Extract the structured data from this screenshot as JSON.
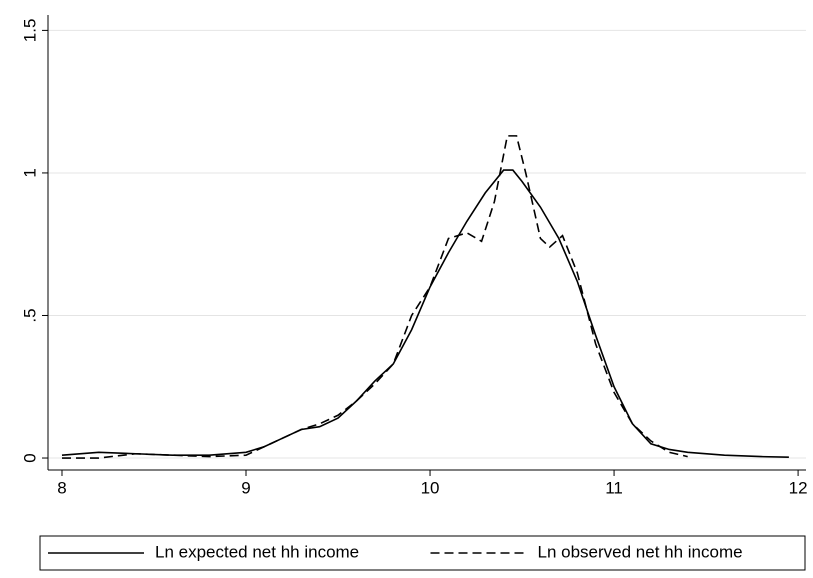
{
  "chart_data": {
    "type": "line",
    "xlim": [
      7.924,
      12.043
    ],
    "ylim": [
      -0.042,
      1.554
    ],
    "xticks": [
      8,
      9,
      10,
      11,
      12
    ],
    "yticks": [
      0,
      {
        "value": 0.5,
        "label": ".5"
      },
      1,
      {
        "value": 1.5,
        "label": "1.5"
      }
    ],
    "grid": true,
    "legend": "bottom",
    "series": [
      {
        "name": "Ln expected net hh income",
        "color": "#000000",
        "dash": "solid",
        "x": [
          8,
          8.2,
          8.4,
          8.6,
          8.8,
          9.0,
          9.1,
          9.2,
          9.3,
          9.4,
          9.5,
          9.6,
          9.7,
          9.8,
          9.9,
          10.0,
          10.1,
          10.2,
          10.3,
          10.4,
          10.45,
          10.5,
          10.6,
          10.7,
          10.8,
          10.9,
          11.0,
          11.1,
          11.2,
          11.3,
          11.4,
          11.6,
          11.8,
          11.95
        ],
        "values": [
          0.01,
          0.02,
          0.015,
          0.01,
          0.01,
          0.02,
          0.04,
          0.07,
          0.1,
          0.11,
          0.14,
          0.2,
          0.27,
          0.33,
          0.45,
          0.6,
          0.72,
          0.83,
          0.93,
          1.01,
          1.01,
          0.97,
          0.88,
          0.77,
          0.62,
          0.43,
          0.25,
          0.12,
          0.05,
          0.03,
          0.02,
          0.01,
          0.005,
          0.003
        ]
      },
      {
        "name": "Ln observed net hh income",
        "color": "#000000",
        "dash": "dashed",
        "x": [
          8,
          8.2,
          8.4,
          8.6,
          8.8,
          9.0,
          9.1,
          9.2,
          9.3,
          9.4,
          9.5,
          9.6,
          9.7,
          9.8,
          9.9,
          10.0,
          10.1,
          10.2,
          10.28,
          10.35,
          10.42,
          10.47,
          10.52,
          10.6,
          10.65,
          10.72,
          10.8,
          10.9,
          11.0,
          11.1,
          11.2,
          11.3,
          11.4
        ],
        "values": [
          0.0,
          0.0,
          0.015,
          0.01,
          0.005,
          0.01,
          0.04,
          0.07,
          0.1,
          0.12,
          0.15,
          0.2,
          0.26,
          0.33,
          0.5,
          0.6,
          0.77,
          0.79,
          0.76,
          0.9,
          1.13,
          1.13,
          1.0,
          0.77,
          0.74,
          0.78,
          0.65,
          0.4,
          0.23,
          0.12,
          0.06,
          0.02,
          0.005
        ]
      }
    ]
  }
}
